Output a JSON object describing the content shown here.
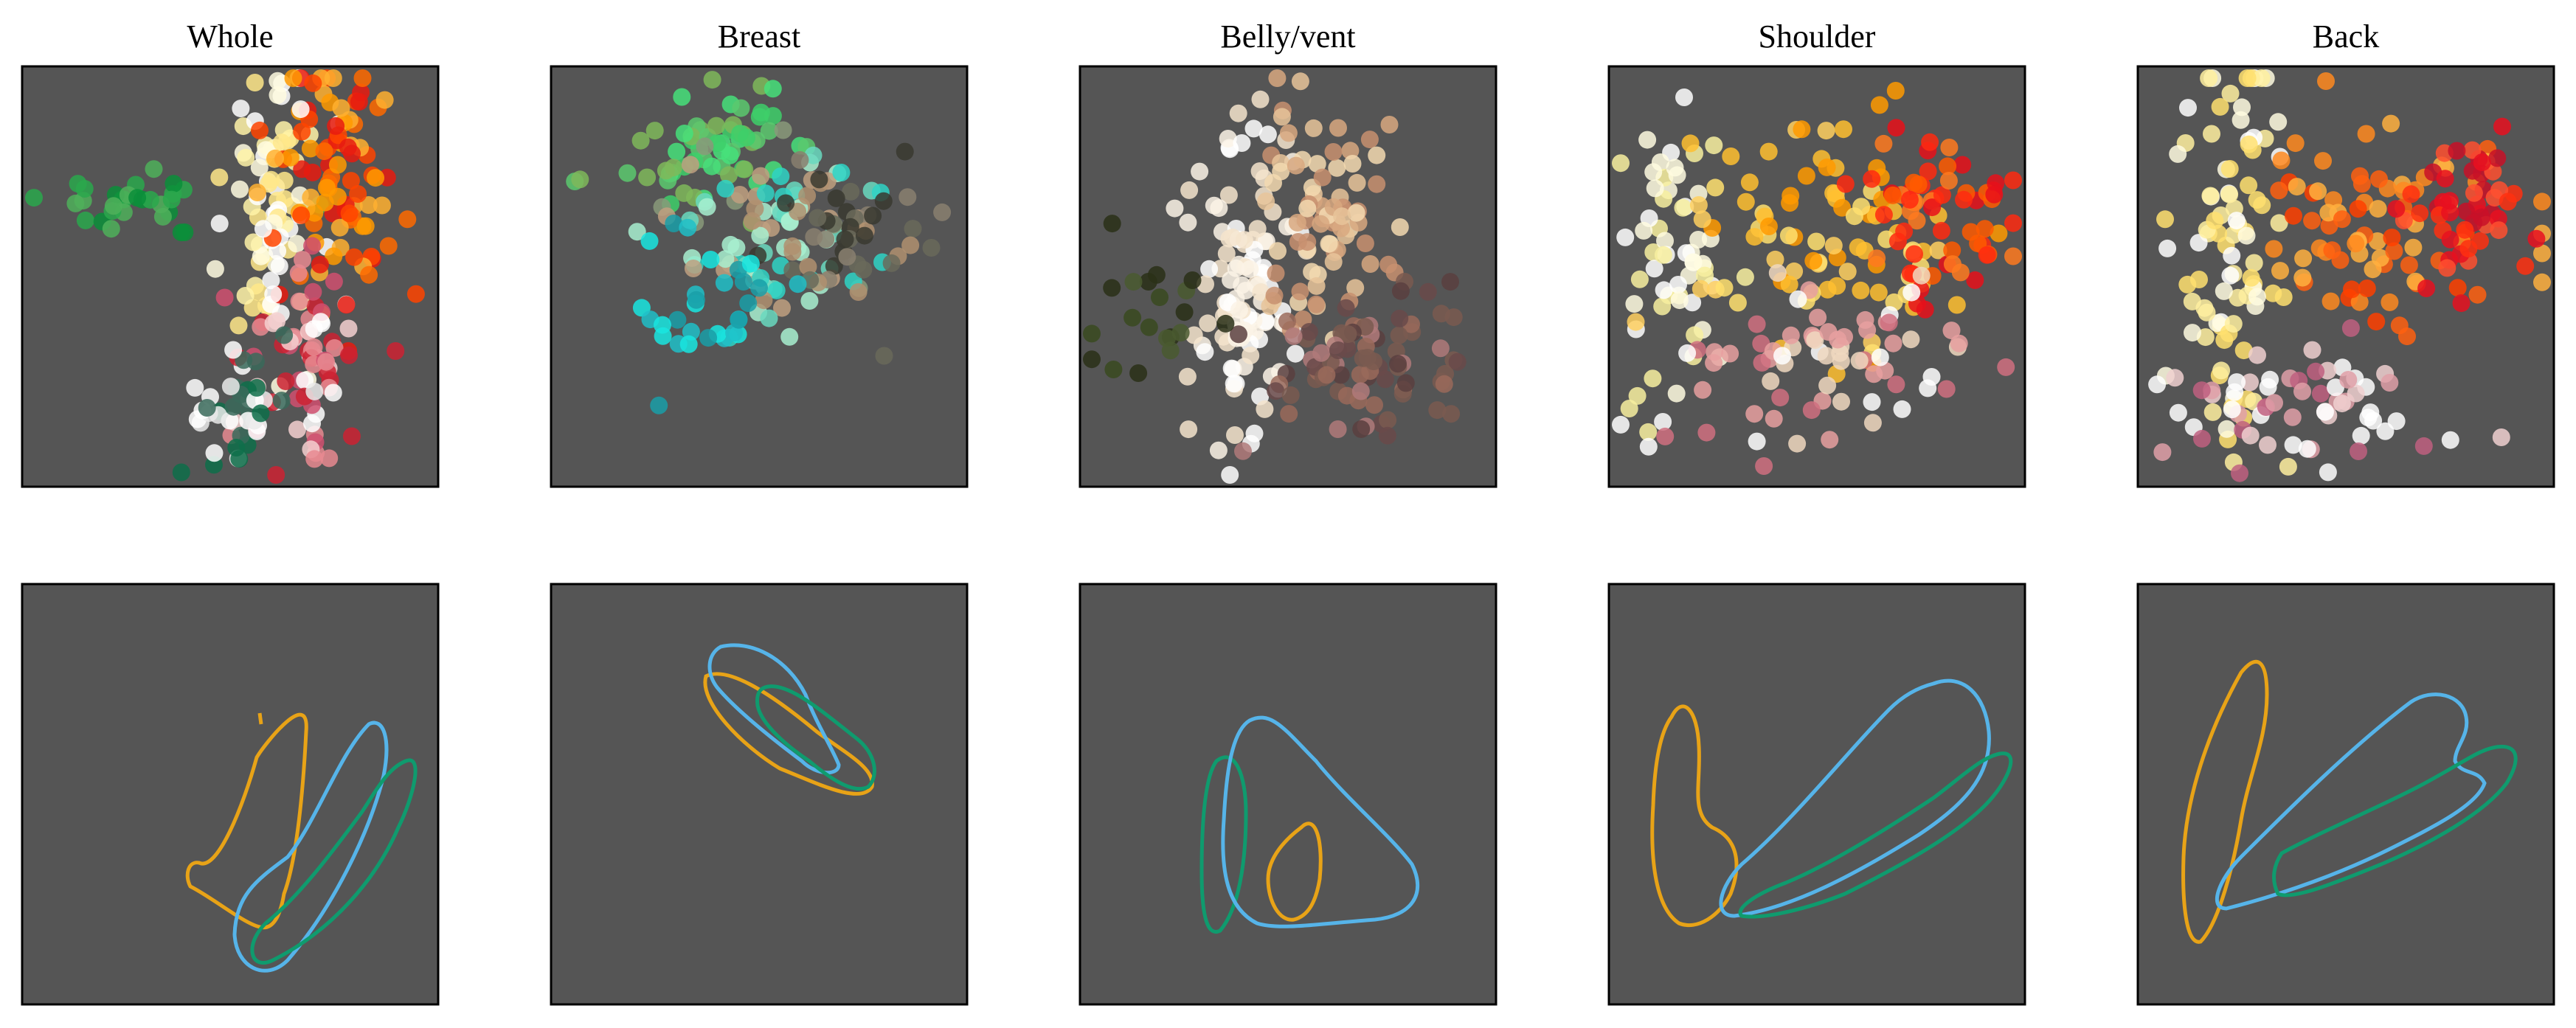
{
  "figure": {
    "background": "#ffffff",
    "panel_background": "#555555",
    "colors": {
      "orange_contour": "#E8A317",
      "blue_contour": "#56B4E9",
      "green_contour": "#0F9B6E"
    }
  },
  "chart_data": [
    {
      "type": "scatter",
      "title": "Whole",
      "row": 1,
      "column": 1,
      "xlabel": "",
      "ylabel": "",
      "axis_ticks": false,
      "grid": false
    },
    {
      "type": "scatter",
      "title": "Breast",
      "row": 1,
      "column": 2,
      "xlabel": "",
      "ylabel": "",
      "axis_ticks": false,
      "grid": false
    },
    {
      "type": "scatter",
      "title": "Belly/vent",
      "row": 1,
      "column": 3,
      "xlabel": "",
      "ylabel": "",
      "axis_ticks": false,
      "grid": false
    },
    {
      "type": "scatter",
      "title": "Shoulder",
      "row": 1,
      "column": 4,
      "xlabel": "",
      "ylabel": "",
      "axis_ticks": false,
      "grid": false
    },
    {
      "type": "scatter",
      "title": "Back",
      "row": 1,
      "column": 5,
      "xlabel": "",
      "ylabel": "",
      "axis_ticks": false,
      "grid": false
    },
    {
      "type": "contour",
      "title": "",
      "row": 2,
      "column": 1,
      "series_colors": [
        "#E8A317",
        "#56B4E9",
        "#0F9B6E"
      ]
    },
    {
      "type": "contour",
      "title": "",
      "row": 2,
      "column": 2,
      "series_colors": [
        "#E8A317",
        "#56B4E9",
        "#0F9B6E"
      ]
    },
    {
      "type": "contour",
      "title": "",
      "row": 2,
      "column": 3,
      "series_colors": [
        "#E8A317",
        "#56B4E9",
        "#0F9B6E"
      ]
    },
    {
      "type": "contour",
      "title": "",
      "row": 2,
      "column": 4,
      "series_colors": [
        "#E8A317",
        "#56B4E9",
        "#0F9B6E"
      ]
    },
    {
      "type": "contour",
      "title": "",
      "row": 2,
      "column": 5,
      "series_colors": [
        "#E8A317",
        "#56B4E9",
        "#0F9B6E"
      ]
    }
  ]
}
